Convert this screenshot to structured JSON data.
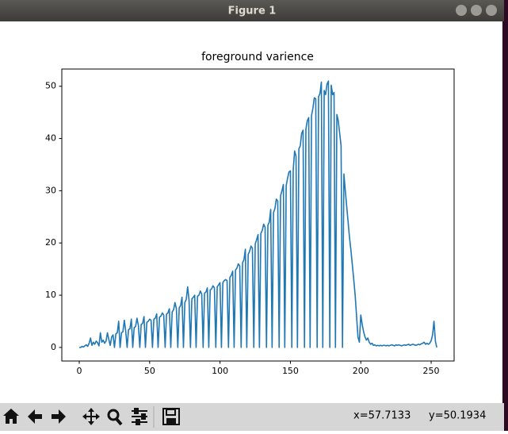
{
  "window": {
    "title": "Figure 1"
  },
  "chart_data": {
    "type": "line",
    "title": "foreground varience",
    "x": [
      0,
      1,
      2,
      3,
      4,
      5,
      6,
      7,
      8,
      9,
      10,
      11,
      12,
      13,
      14,
      15,
      16,
      17,
      18,
      19,
      20,
      21,
      22,
      23,
      24,
      25,
      26,
      27,
      28,
      29,
      30,
      31,
      32,
      33,
      34,
      35,
      36,
      37,
      38,
      39,
      40,
      41,
      42,
      43,
      44,
      45,
      46,
      47,
      48,
      49,
      50,
      51,
      52,
      53,
      54,
      55,
      56,
      57,
      58,
      59,
      60,
      61,
      62,
      63,
      64,
      65,
      66,
      67,
      68,
      69,
      70,
      71,
      72,
      73,
      74,
      75,
      76,
      77,
      78,
      79,
      80,
      81,
      82,
      83,
      84,
      85,
      86,
      87,
      88,
      89,
      90,
      91,
      92,
      93,
      94,
      95,
      96,
      97,
      98,
      99,
      100,
      101,
      102,
      103,
      104,
      105,
      106,
      107,
      108,
      109,
      110,
      111,
      112,
      113,
      114,
      115,
      116,
      117,
      118,
      119,
      120,
      121,
      122,
      123,
      124,
      125,
      126,
      127,
      128,
      129,
      130,
      131,
      132,
      133,
      134,
      135,
      136,
      137,
      138,
      139,
      140,
      141,
      142,
      143,
      144,
      145,
      146,
      147,
      148,
      149,
      150,
      151,
      152,
      153,
      154,
      155,
      156,
      157,
      158,
      159,
      160,
      161,
      162,
      163,
      164,
      165,
      166,
      167,
      168,
      169,
      170,
      171,
      172,
      173,
      174,
      175,
      176,
      177,
      178,
      179,
      180,
      181,
      182,
      183,
      184,
      185,
      186,
      187,
      188,
      189,
      190,
      191,
      192,
      193,
      194,
      195,
      196,
      197,
      198,
      199,
      200,
      201,
      202,
      203,
      204,
      205,
      206,
      207,
      208,
      209,
      210,
      211,
      212,
      213,
      214,
      215,
      216,
      217,
      218,
      219,
      220,
      221,
      222,
      223,
      224,
      225,
      226,
      227,
      228,
      229,
      230,
      231,
      232,
      233,
      234,
      235,
      236,
      237,
      238,
      239,
      240,
      241,
      242,
      243,
      244,
      245,
      246,
      247,
      248,
      249,
      250,
      251,
      252,
      253,
      254
    ],
    "series": [
      {
        "color": "#1f77b4",
        "values": [
          0,
          0,
          0.2,
          0.1,
          0.3,
          0.5,
          0.2,
          0.8,
          1.8,
          0.4,
          1.0,
          0.6,
          1.2,
          0.9,
          0.3,
          2.8,
          1.0,
          1.4,
          0.8,
          1.2,
          2.8,
          1.5,
          0.4,
          2.0,
          2.4,
          0,
          2.6,
          2.8,
          5.0,
          0,
          2.8,
          3.0,
          5.2,
          3.1,
          0,
          3.4,
          3.6,
          5.4,
          0,
          3.8,
          4.0,
          5.6,
          4.2,
          0,
          4.4,
          4.6,
          5.9,
          0,
          4.8,
          5.0,
          5.4,
          5.2,
          0,
          5.4,
          5.6,
          6.4,
          0,
          5.8,
          6.0,
          6.6,
          6.2,
          0,
          6.4,
          6.6,
          7.4,
          0,
          6.8,
          7.2,
          8.6,
          7.4,
          0,
          7.6,
          8.0,
          9.6,
          0,
          8.6,
          9.2,
          11.6,
          9.0,
          0,
          9.3,
          9.6,
          10.0,
          0,
          9.8,
          10.0,
          10.8,
          10.2,
          0,
          10.4,
          10.6,
          11.4,
          0,
          11.0,
          11.2,
          11.8,
          11.4,
          0,
          11.6,
          12.0,
          12.4,
          0,
          12.4,
          12.8,
          13.0,
          12.8,
          0,
          13.4,
          13.8,
          14.6,
          0,
          14.8,
          15.2,
          16.0,
          15.6,
          0,
          16.2,
          16.8,
          18.8,
          0,
          17.8,
          18.4,
          19.4,
          19.0,
          0,
          19.8,
          20.6,
          21.6,
          0,
          21.8,
          22.4,
          23.6,
          23.0,
          0,
          23.4,
          24.0,
          26.4,
          0,
          25.8,
          26.6,
          28.4,
          28.0,
          0,
          29.0,
          30.0,
          31.2,
          0,
          31.0,
          32.4,
          33.6,
          33.8,
          0,
          34.0,
          37.6,
          36.6,
          0,
          38.0,
          38.6,
          41.0,
          41.6,
          0,
          41.8,
          43.4,
          44.0,
          0,
          44.4,
          45.8,
          47.8,
          47.6,
          0,
          48.0,
          48.6,
          50.8,
          0,
          49.2,
          48.4,
          50.4,
          51.0,
          0,
          50.2,
          48.4,
          48.8,
          0,
          44.6,
          43.4,
          41.0,
          38.6,
          0,
          33.2,
          30.0,
          27.0,
          24.0,
          21.0,
          18.6,
          15.8,
          13.0,
          10.0,
          6.0,
          2.0,
          1.0,
          6.2,
          4.4,
          3.0,
          2.0,
          1.4,
          1.8,
          1.0,
          0.6,
          0.8,
          0.4,
          0.5,
          0.3,
          0.4,
          0.3,
          0.4,
          0.3,
          0.4,
          0.4,
          0.3,
          0.4,
          0.3,
          0.4,
          0.5,
          0.4,
          0.3,
          0.5,
          0.4,
          0.5,
          0.4,
          0.3,
          0.4,
          0.5,
          0.4,
          0.5,
          0.6,
          0.4,
          0.5,
          0.6,
          0.5,
          0.4,
          0.5,
          0.6,
          0.5,
          0.7,
          0.8,
          1.0,
          0.6,
          0.8,
          0.6,
          0.8,
          1.3,
          2.4,
          5.0,
          1.2,
          0
        ]
      }
    ],
    "xlim": [
      -12.4,
      266.3
    ],
    "xticks": [
      0,
      50,
      100,
      150,
      200,
      250
    ],
    "ylim": [
      -2.6,
      53.3
    ],
    "yticks": [
      0,
      10,
      20,
      30,
      40,
      50
    ]
  },
  "toolbar": {
    "status_x": "x=57.7133",
    "status_y": "y=50.1934"
  }
}
